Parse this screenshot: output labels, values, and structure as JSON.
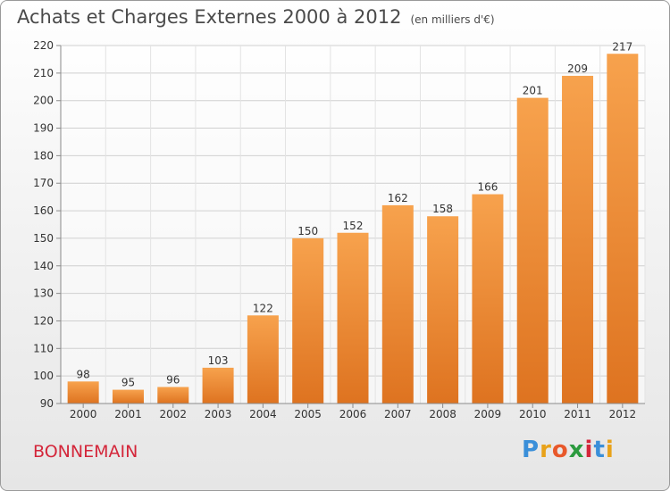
{
  "chart_data": {
    "type": "bar",
    "title": "Achats et Charges Externes 2000 à 2012",
    "unit_label": "(en milliers d'€)",
    "categories": [
      "2000",
      "2001",
      "2002",
      "2003",
      "2004",
      "2005",
      "2006",
      "2007",
      "2008",
      "2009",
      "2010",
      "2011",
      "2012"
    ],
    "values": [
      98,
      95,
      96,
      103,
      122,
      150,
      152,
      162,
      158,
      166,
      201,
      209,
      217
    ],
    "ylim": [
      90,
      220
    ],
    "yticks": [
      90,
      100,
      110,
      120,
      130,
      140,
      150,
      160,
      170,
      180,
      190,
      200,
      210,
      220
    ],
    "grid": true,
    "bar_color_top": "#f7a24d",
    "bar_color_bottom": "#de7320"
  },
  "footer": {
    "commune": "BONNEMAIN",
    "logo_letters": [
      "P",
      "r",
      "o",
      "x",
      "i",
      "t",
      "i"
    ],
    "logo_colors": [
      "#3a8fd9",
      "#e8a21a",
      "#e8582a",
      "#2b9a3e",
      "#d4263a",
      "#3a8fd9",
      "#e8a21a"
    ]
  }
}
